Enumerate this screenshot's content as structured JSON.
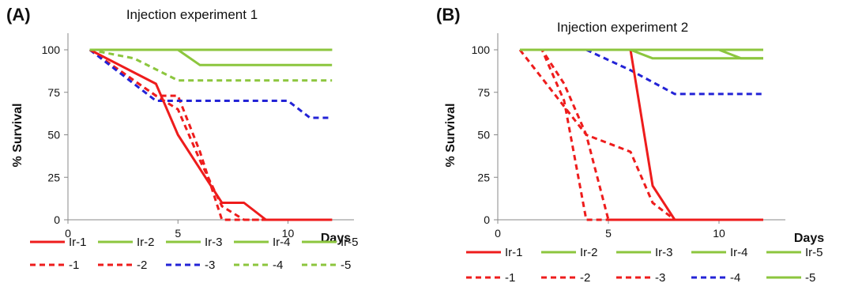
{
  "colors": {
    "red": "#ee1c1c",
    "green": "#8cc63e",
    "blue": "#2323d6",
    "axis": "#888888"
  },
  "chart_data": [
    {
      "type": "line",
      "panel_label": "(A)",
      "title": "Injection experiment 1",
      "xlabel": "Days",
      "ylabel": "% Survival",
      "xlim": [
        0,
        13
      ],
      "ylim": [
        0,
        100
      ],
      "xticks": [
        0,
        5,
        10
      ],
      "yticks": [
        0,
        25,
        50,
        75,
        100
      ],
      "grid": false,
      "legend": "bottom",
      "series": [
        {
          "name": "Ir-1",
          "color": "red",
          "dash": "solid",
          "points": [
            [
              1,
              100
            ],
            [
              4,
              80
            ],
            [
              5,
              50
            ],
            [
              7,
              10
            ],
            [
              8,
              10
            ],
            [
              9,
              0
            ],
            [
              12,
              0
            ]
          ]
        },
        {
          "name": "Ir-2",
          "color": "green",
          "dash": "solid",
          "points": [
            [
              1,
              100
            ],
            [
              12,
              100
            ]
          ]
        },
        {
          "name": "Ir-3",
          "color": "green",
          "dash": "solid",
          "points": [
            [
              1,
              100
            ],
            [
              12,
              100
            ]
          ]
        },
        {
          "name": "Ir-4",
          "color": "green",
          "dash": "solid",
          "points": [
            [
              1,
              100
            ],
            [
              12,
              100
            ]
          ]
        },
        {
          "name": "Ir-5",
          "color": "green",
          "dash": "solid",
          "points": [
            [
              1,
              100
            ],
            [
              5,
              100
            ],
            [
              6,
              91
            ],
            [
              12,
              91
            ]
          ]
        },
        {
          "name": "-1",
          "color": "red",
          "dash": "dashed",
          "points": [
            [
              1,
              100
            ],
            [
              4,
              73
            ],
            [
              5,
              73
            ],
            [
              6,
              40
            ],
            [
              7,
              0
            ],
            [
              12,
              0
            ]
          ]
        },
        {
          "name": "-2",
          "color": "red",
          "dash": "dashed",
          "points": [
            [
              1,
              100
            ],
            [
              4,
              73
            ],
            [
              5,
              65
            ],
            [
              6,
              35
            ],
            [
              7,
              8
            ],
            [
              8,
              0
            ],
            [
              12,
              0
            ]
          ]
        },
        {
          "name": "-3",
          "color": "blue",
          "dash": "dashed",
          "points": [
            [
              1,
              100
            ],
            [
              4,
              70
            ],
            [
              10,
              70
            ],
            [
              11,
              60
            ],
            [
              12,
              60
            ]
          ]
        },
        {
          "name": "-4",
          "color": "green",
          "dash": "dashed",
          "points": [
            [
              1,
              100
            ],
            [
              3,
              95
            ],
            [
              5,
              82
            ],
            [
              12,
              82
            ]
          ]
        },
        {
          "name": "-5",
          "color": "green",
          "dash": "dashed",
          "points": [
            [
              1,
              100
            ],
            [
              12,
              100
            ]
          ]
        }
      ]
    },
    {
      "type": "line",
      "panel_label": "(B)",
      "title": "Injection experiment 2",
      "xlabel": "Days",
      "ylabel": "% Survival",
      "xlim": [
        0,
        13
      ],
      "ylim": [
        0,
        100
      ],
      "xticks": [
        0,
        5,
        10
      ],
      "yticks": [
        0,
        25,
        50,
        75,
        100
      ],
      "grid": false,
      "legend": "bottom",
      "series": [
        {
          "name": "Ir-1",
          "color": "red",
          "dash": "solid",
          "points": [
            [
              1,
              100
            ],
            [
              6,
              100
            ],
            [
              7,
              20
            ],
            [
              8,
              0
            ],
            [
              12,
              0
            ]
          ]
        },
        {
          "name": "Ir-2",
          "color": "green",
          "dash": "solid",
          "points": [
            [
              1,
              100
            ],
            [
              12,
              100
            ]
          ]
        },
        {
          "name": "Ir-3",
          "color": "green",
          "dash": "solid",
          "points": [
            [
              1,
              100
            ],
            [
              10,
              100
            ],
            [
              11,
              95
            ],
            [
              12,
              95
            ]
          ]
        },
        {
          "name": "Ir-4",
          "color": "green",
          "dash": "solid",
          "points": [
            [
              1,
              100
            ],
            [
              6,
              100
            ],
            [
              7,
              95
            ],
            [
              12,
              95
            ]
          ]
        },
        {
          "name": "Ir-5",
          "color": "green",
          "dash": "solid",
          "points": [
            [
              1,
              100
            ],
            [
              12,
              100
            ]
          ]
        },
        {
          "name": "-1",
          "color": "red",
          "dash": "dashed",
          "points": [
            [
              1,
              100
            ],
            [
              2,
              100
            ],
            [
              3,
              70
            ],
            [
              4,
              0
            ],
            [
              12,
              0
            ]
          ]
        },
        {
          "name": "-2",
          "color": "red",
          "dash": "dashed",
          "points": [
            [
              1,
              100
            ],
            [
              2,
              100
            ],
            [
              3,
              80
            ],
            [
              4,
              50
            ],
            [
              5,
              0
            ],
            [
              12,
              0
            ]
          ]
        },
        {
          "name": "-3",
          "color": "red",
          "dash": "dashed",
          "points": [
            [
              1,
              100
            ],
            [
              4,
              50
            ],
            [
              6,
              40
            ],
            [
              7,
              10
            ],
            [
              8,
              0
            ],
            [
              12,
              0
            ]
          ]
        },
        {
          "name": "-4",
          "color": "blue",
          "dash": "dashed",
          "points": [
            [
              1,
              100
            ],
            [
              4,
              100
            ],
            [
              6,
              88
            ],
            [
              8,
              74
            ],
            [
              12,
              74
            ]
          ]
        },
        {
          "name": "-5",
          "color": "green",
          "dash": "solid",
          "points": [
            [
              1,
              100
            ],
            [
              12,
              100
            ]
          ]
        }
      ]
    }
  ]
}
